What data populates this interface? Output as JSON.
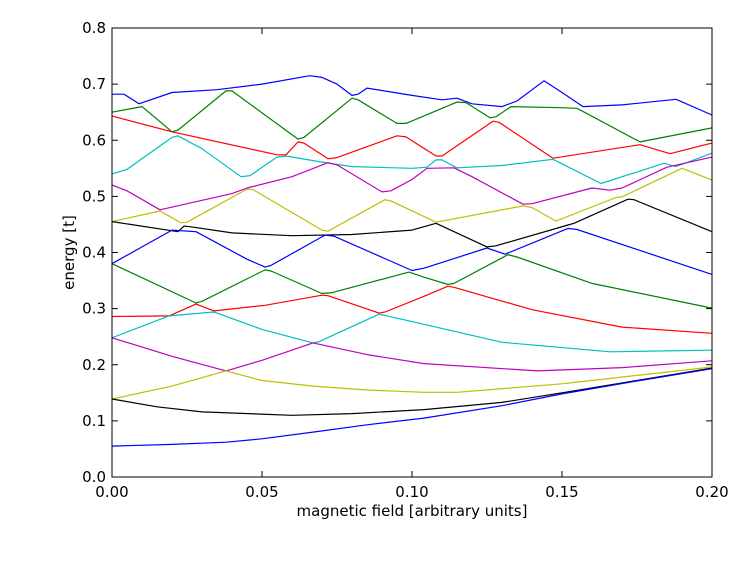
{
  "chart_data": {
    "type": "line",
    "title": "",
    "xlabel": "magnetic field [arbitrary units]",
    "ylabel": "energy [t]",
    "xlim": [
      0.0,
      0.2
    ],
    "ylim": [
      0.0,
      0.8
    ],
    "xticks": [
      "0.00",
      "0.05",
      "0.10",
      "0.15",
      "0.20"
    ],
    "xtick_values": [
      0,
      0.05,
      0.1,
      0.15,
      0.2
    ],
    "yticks": [
      "0.0",
      "0.1",
      "0.2",
      "0.3",
      "0.4",
      "0.5",
      "0.6",
      "0.7",
      "0.8"
    ],
    "ytick_values": [
      0,
      0.1,
      0.2,
      0.3,
      0.4,
      0.5,
      0.6,
      0.7,
      0.8
    ],
    "grid": false,
    "legend": "none",
    "series": [
      {
        "color": "#0000ff",
        "points": [
          [
            0,
            0.682
          ],
          [
            0.004,
            0.682
          ],
          [
            0.009,
            0.665
          ],
          [
            0.02,
            0.685
          ],
          [
            0.035,
            0.69
          ],
          [
            0.05,
            0.7
          ],
          [
            0.066,
            0.715
          ],
          [
            0.07,
            0.712
          ],
          [
            0.075,
            0.7
          ],
          [
            0.08,
            0.68
          ],
          [
            0.082,
            0.682
          ],
          [
            0.085,
            0.693
          ],
          [
            0.1,
            0.68
          ],
          [
            0.11,
            0.672
          ],
          [
            0.115,
            0.675
          ],
          [
            0.12,
            0.665
          ],
          [
            0.13,
            0.66
          ],
          [
            0.135,
            0.67
          ],
          [
            0.144,
            0.706
          ],
          [
            0.15,
            0.685
          ],
          [
            0.157,
            0.66
          ],
          [
            0.17,
            0.663
          ],
          [
            0.188,
            0.673
          ],
          [
            0.2,
            0.645
          ]
        ]
      },
      {
        "color": "#008000",
        "points": [
          [
            0,
            0.65
          ],
          [
            0.005,
            0.655
          ],
          [
            0.01,
            0.66
          ],
          [
            0.02,
            0.615
          ],
          [
            0.022,
            0.618
          ],
          [
            0.038,
            0.688
          ],
          [
            0.04,
            0.688
          ],
          [
            0.062,
            0.602
          ],
          [
            0.064,
            0.605
          ],
          [
            0.08,
            0.675
          ],
          [
            0.082,
            0.672
          ],
          [
            0.095,
            0.63
          ],
          [
            0.098,
            0.63
          ],
          [
            0.115,
            0.668
          ],
          [
            0.118,
            0.667
          ],
          [
            0.126,
            0.64
          ],
          [
            0.128,
            0.642
          ],
          [
            0.133,
            0.66
          ],
          [
            0.15,
            0.658
          ],
          [
            0.155,
            0.657
          ],
          [
            0.176,
            0.597
          ],
          [
            0.2,
            0.622
          ]
        ]
      },
      {
        "color": "#ff0000",
        "points": [
          [
            0,
            0.643
          ],
          [
            0.02,
            0.615
          ],
          [
            0.055,
            0.574
          ],
          [
            0.058,
            0.574
          ],
          [
            0.062,
            0.597
          ],
          [
            0.064,
            0.595
          ],
          [
            0.072,
            0.567
          ],
          [
            0.075,
            0.569
          ],
          [
            0.095,
            0.608
          ],
          [
            0.098,
            0.606
          ],
          [
            0.108,
            0.572
          ],
          [
            0.11,
            0.572
          ],
          [
            0.127,
            0.634
          ],
          [
            0.129,
            0.632
          ],
          [
            0.147,
            0.568
          ],
          [
            0.176,
            0.592
          ],
          [
            0.186,
            0.576
          ],
          [
            0.2,
            0.595
          ]
        ]
      },
      {
        "color": "#00bfbf",
        "points": [
          [
            0,
            0.54
          ],
          [
            0.005,
            0.548
          ],
          [
            0.02,
            0.605
          ],
          [
            0.022,
            0.608
          ],
          [
            0.03,
            0.585
          ],
          [
            0.043,
            0.535
          ],
          [
            0.046,
            0.537
          ],
          [
            0.055,
            0.57
          ],
          [
            0.058,
            0.572
          ],
          [
            0.07,
            0.561
          ],
          [
            0.08,
            0.553
          ],
          [
            0.1,
            0.55
          ],
          [
            0.105,
            0.552
          ],
          [
            0.108,
            0.565
          ],
          [
            0.11,
            0.565
          ],
          [
            0.115,
            0.551
          ],
          [
            0.13,
            0.555
          ],
          [
            0.147,
            0.566
          ],
          [
            0.163,
            0.523
          ],
          [
            0.184,
            0.559
          ],
          [
            0.188,
            0.553
          ],
          [
            0.2,
            0.577
          ]
        ]
      },
      {
        "color": "#bf00bf",
        "points": [
          [
            0,
            0.52
          ],
          [
            0.005,
            0.51
          ],
          [
            0.016,
            0.476
          ],
          [
            0.04,
            0.505
          ],
          [
            0.045,
            0.515
          ],
          [
            0.06,
            0.535
          ],
          [
            0.072,
            0.56
          ],
          [
            0.075,
            0.556
          ],
          [
            0.09,
            0.508
          ],
          [
            0.093,
            0.51
          ],
          [
            0.1,
            0.53
          ],
          [
            0.105,
            0.55
          ],
          [
            0.114,
            0.551
          ],
          [
            0.12,
            0.535
          ],
          [
            0.137,
            0.486
          ],
          [
            0.14,
            0.487
          ],
          [
            0.16,
            0.515
          ],
          [
            0.166,
            0.511
          ],
          [
            0.17,
            0.515
          ],
          [
            0.185,
            0.552
          ],
          [
            0.2,
            0.57
          ]
        ]
      },
      {
        "color": "#bfbf00",
        "points": [
          [
            0,
            0.455
          ],
          [
            0.016,
            0.474
          ],
          [
            0.023,
            0.453
          ],
          [
            0.025,
            0.454
          ],
          [
            0.045,
            0.513
          ],
          [
            0.047,
            0.512
          ],
          [
            0.07,
            0.44
          ],
          [
            0.072,
            0.438
          ],
          [
            0.091,
            0.494
          ],
          [
            0.093,
            0.492
          ],
          [
            0.108,
            0.454
          ],
          [
            0.137,
            0.483
          ],
          [
            0.14,
            0.48
          ],
          [
            0.148,
            0.456
          ],
          [
            0.168,
            0.498
          ],
          [
            0.17,
            0.499
          ],
          [
            0.19,
            0.55
          ],
          [
            0.2,
            0.529
          ]
        ]
      },
      {
        "color": "#000000",
        "points": [
          [
            0,
            0.455
          ],
          [
            0.022,
            0.437
          ],
          [
            0.024,
            0.447
          ],
          [
            0.026,
            0.446
          ],
          [
            0.04,
            0.435
          ],
          [
            0.06,
            0.43
          ],
          [
            0.08,
            0.432
          ],
          [
            0.1,
            0.44
          ],
          [
            0.108,
            0.452
          ],
          [
            0.125,
            0.41
          ],
          [
            0.128,
            0.412
          ],
          [
            0.152,
            0.449
          ],
          [
            0.154,
            0.452
          ],
          [
            0.172,
            0.495
          ],
          [
            0.174,
            0.494
          ],
          [
            0.2,
            0.437
          ]
        ]
      },
      {
        "color": "#0000ff",
        "points": [
          [
            0,
            0.38
          ],
          [
            0.02,
            0.44
          ],
          [
            0.028,
            0.437
          ],
          [
            0.045,
            0.388
          ],
          [
            0.051,
            0.374
          ],
          [
            0.053,
            0.377
          ],
          [
            0.071,
            0.431
          ],
          [
            0.074,
            0.429
          ],
          [
            0.1,
            0.368
          ],
          [
            0.104,
            0.372
          ],
          [
            0.125,
            0.408
          ],
          [
            0.131,
            0.397
          ],
          [
            0.152,
            0.443
          ],
          [
            0.155,
            0.441
          ],
          [
            0.2,
            0.361
          ]
        ]
      },
      {
        "color": "#008000",
        "points": [
          [
            0,
            0.38
          ],
          [
            0.028,
            0.31
          ],
          [
            0.03,
            0.313
          ],
          [
            0.051,
            0.369
          ],
          [
            0.053,
            0.367
          ],
          [
            0.07,
            0.327
          ],
          [
            0.073,
            0.328
          ],
          [
            0.099,
            0.365
          ],
          [
            0.104,
            0.356
          ],
          [
            0.112,
            0.343
          ],
          [
            0.114,
            0.345
          ],
          [
            0.132,
            0.396
          ],
          [
            0.135,
            0.392
          ],
          [
            0.16,
            0.345
          ],
          [
            0.2,
            0.301
          ]
        ]
      },
      {
        "color": "#ff0000",
        "points": [
          [
            0,
            0.286
          ],
          [
            0.019,
            0.287
          ],
          [
            0.028,
            0.308
          ],
          [
            0.034,
            0.296
          ],
          [
            0.051,
            0.306
          ],
          [
            0.07,
            0.324
          ],
          [
            0.072,
            0.323
          ],
          [
            0.089,
            0.292
          ],
          [
            0.091,
            0.294
          ],
          [
            0.104,
            0.322
          ],
          [
            0.112,
            0.34
          ],
          [
            0.114,
            0.338
          ],
          [
            0.14,
            0.298
          ],
          [
            0.17,
            0.267
          ],
          [
            0.2,
            0.256
          ]
        ]
      },
      {
        "color": "#00bfbf",
        "points": [
          [
            0,
            0.248
          ],
          [
            0.019,
            0.287
          ],
          [
            0.034,
            0.294
          ],
          [
            0.05,
            0.263
          ],
          [
            0.067,
            0.239
          ],
          [
            0.069,
            0.241
          ],
          [
            0.089,
            0.29
          ],
          [
            0.091,
            0.288
          ],
          [
            0.104,
            0.272
          ],
          [
            0.13,
            0.24
          ],
          [
            0.166,
            0.223
          ],
          [
            0.2,
            0.226
          ]
        ]
      },
      {
        "color": "#bf00bf",
        "points": [
          [
            0,
            0.248
          ],
          [
            0.02,
            0.215
          ],
          [
            0.038,
            0.189
          ],
          [
            0.05,
            0.208
          ],
          [
            0.067,
            0.239
          ],
          [
            0.085,
            0.218
          ],
          [
            0.104,
            0.202
          ],
          [
            0.142,
            0.189
          ],
          [
            0.17,
            0.195
          ],
          [
            0.2,
            0.207
          ]
        ]
      },
      {
        "color": "#bfbf00",
        "points": [
          [
            0,
            0.139
          ],
          [
            0.02,
            0.162
          ],
          [
            0.038,
            0.189
          ],
          [
            0.05,
            0.172
          ],
          [
            0.067,
            0.162
          ],
          [
            0.085,
            0.155
          ],
          [
            0.104,
            0.151
          ],
          [
            0.115,
            0.151
          ],
          [
            0.15,
            0.166
          ],
          [
            0.2,
            0.196
          ]
        ]
      },
      {
        "color": "#000000",
        "points": [
          [
            0,
            0.139
          ],
          [
            0.015,
            0.125
          ],
          [
            0.03,
            0.116
          ],
          [
            0.06,
            0.11
          ],
          [
            0.08,
            0.113
          ],
          [
            0.104,
            0.12
          ],
          [
            0.13,
            0.133
          ],
          [
            0.15,
            0.15
          ],
          [
            0.175,
            0.172
          ],
          [
            0.2,
            0.194
          ]
        ]
      },
      {
        "color": "#0000ff",
        "points": [
          [
            0,
            0.055
          ],
          [
            0.02,
            0.058
          ],
          [
            0.038,
            0.062
          ],
          [
            0.05,
            0.068
          ],
          [
            0.067,
            0.08
          ],
          [
            0.085,
            0.093
          ],
          [
            0.104,
            0.105
          ],
          [
            0.13,
            0.127
          ],
          [
            0.15,
            0.148
          ],
          [
            0.175,
            0.171
          ],
          [
            0.2,
            0.193
          ]
        ]
      }
    ]
  }
}
